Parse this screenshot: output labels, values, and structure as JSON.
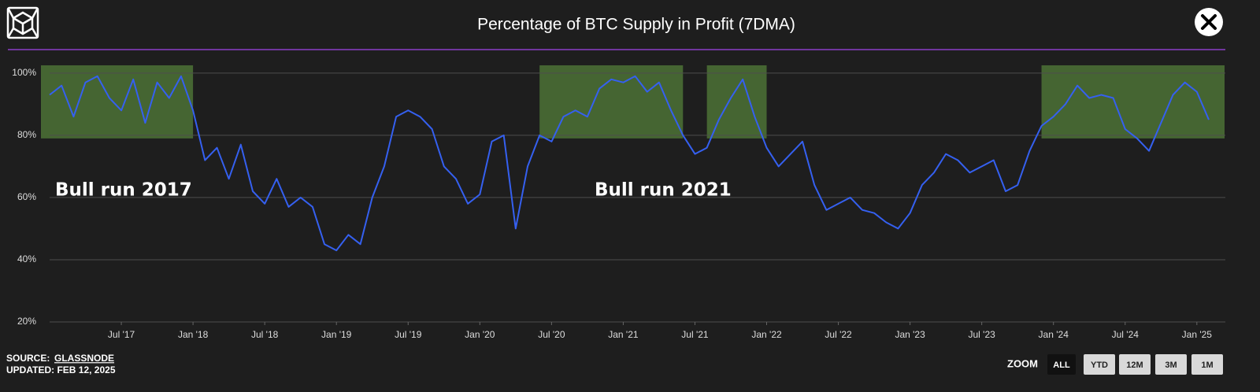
{
  "header": {
    "title": "Percentage of BTC Supply in Profit (7DMA)"
  },
  "chart_data": {
    "type": "line",
    "color": "#3560f0",
    "x": [
      "2017-01",
      "2017-02",
      "2017-03",
      "2017-04",
      "2017-05",
      "2017-06",
      "2017-07",
      "2017-08",
      "2017-09",
      "2017-10",
      "2017-11",
      "2017-12",
      "2018-01",
      "2018-02",
      "2018-03",
      "2018-04",
      "2018-05",
      "2018-06",
      "2018-07",
      "2018-08",
      "2018-09",
      "2018-10",
      "2018-11",
      "2018-12",
      "2019-01",
      "2019-02",
      "2019-03",
      "2019-04",
      "2019-05",
      "2019-06",
      "2019-07",
      "2019-08",
      "2019-09",
      "2019-10",
      "2019-11",
      "2019-12",
      "2020-01",
      "2020-02",
      "2020-03",
      "2020-04",
      "2020-05",
      "2020-06",
      "2020-07",
      "2020-08",
      "2020-09",
      "2020-10",
      "2020-11",
      "2020-12",
      "2021-01",
      "2021-02",
      "2021-03",
      "2021-04",
      "2021-05",
      "2021-06",
      "2021-07",
      "2021-08",
      "2021-09",
      "2021-10",
      "2021-11",
      "2021-12",
      "2022-01",
      "2022-02",
      "2022-03",
      "2022-04",
      "2022-05",
      "2022-06",
      "2022-07",
      "2022-08",
      "2022-09",
      "2022-10",
      "2022-11",
      "2022-12",
      "2023-01",
      "2023-02",
      "2023-03",
      "2023-04",
      "2023-05",
      "2023-06",
      "2023-07",
      "2023-08",
      "2023-09",
      "2023-10",
      "2023-11",
      "2023-12",
      "2024-01",
      "2024-02",
      "2024-03",
      "2024-04",
      "2024-05",
      "2024-06",
      "2024-07",
      "2024-08",
      "2024-09",
      "2024-10",
      "2024-11",
      "2024-12",
      "2025-01",
      "2025-02"
    ],
    "values": [
      93,
      96,
      86,
      97,
      99,
      92,
      88,
      98,
      84,
      97,
      92,
      99,
      88,
      72,
      76,
      66,
      77,
      62,
      58,
      66,
      57,
      60,
      57,
      45,
      43,
      48,
      45,
      60,
      70,
      86,
      88,
      86,
      82,
      70,
      66,
      58,
      61,
      78,
      80,
      50,
      70,
      80,
      78,
      86,
      88,
      86,
      95,
      98,
      97,
      99,
      94,
      97,
      88,
      80,
      74,
      76,
      85,
      92,
      98,
      86,
      76,
      70,
      74,
      78,
      64,
      56,
      58,
      60,
      56,
      55,
      52,
      50,
      55,
      64,
      68,
      74,
      72,
      68,
      70,
      72,
      62,
      64,
      75,
      83,
      86,
      90,
      96,
      92,
      93,
      92,
      82,
      79,
      75,
      84,
      93,
      97,
      94,
      85
    ],
    "xlim": [
      "2017-01",
      "2025-02"
    ],
    "xticks": [
      {
        "value": "2017-07",
        "label": "Jul '17"
      },
      {
        "value": "2018-01",
        "label": "Jan '18"
      },
      {
        "value": "2018-07",
        "label": "Jul '18"
      },
      {
        "value": "2019-01",
        "label": "Jan '19"
      },
      {
        "value": "2019-07",
        "label": "Jul '19"
      },
      {
        "value": "2020-01",
        "label": "Jan '20"
      },
      {
        "value": "2020-07",
        "label": "Jul '20"
      },
      {
        "value": "2021-01",
        "label": "Jan '21"
      },
      {
        "value": "2021-07",
        "label": "Jul '21"
      },
      {
        "value": "2022-01",
        "label": "Jan '22"
      },
      {
        "value": "2022-07",
        "label": "Jul '22"
      },
      {
        "value": "2023-01",
        "label": "Jan '23"
      },
      {
        "value": "2023-07",
        "label": "Jul '23"
      },
      {
        "value": "2024-01",
        "label": "Jan '24"
      },
      {
        "value": "2024-07",
        "label": "Jul '24"
      },
      {
        "value": "2025-01",
        "label": "Jan '25"
      }
    ],
    "ylim": [
      20,
      103
    ],
    "yticks": [
      {
        "value": 20,
        "label": "20%"
      },
      {
        "value": 40,
        "label": "40%"
      },
      {
        "value": 60,
        "label": "60%"
      },
      {
        "value": 80,
        "label": "80%"
      },
      {
        "value": 100,
        "label": "100%"
      }
    ],
    "grid": true,
    "highlight_color": "#56833a",
    "highlights": [
      {
        "x": [
          "2017-01",
          "2018-01"
        ],
        "y": [
          79,
          102.5
        ]
      },
      {
        "x": [
          "2020-06",
          "2021-06"
        ],
        "y": [
          79,
          102.5
        ]
      },
      {
        "x": [
          "2021-08",
          "2022-01"
        ],
        "y": [
          79,
          102.5
        ]
      },
      {
        "x": [
          "2023-12",
          "2025-02"
        ],
        "y": [
          79,
          102.5
        ]
      }
    ],
    "annotations": [
      {
        "text": "Bull run 2017"
      },
      {
        "text": "Bull run 2021"
      }
    ]
  },
  "footer": {
    "source_label": "SOURCE:",
    "source": "GLASSNODE",
    "updated": "UPDATED: FEB 12, 2025",
    "zoom_label": "ZOOM",
    "zoom_buttons": [
      "ALL",
      "YTD",
      "12M",
      "3M",
      "1M"
    ]
  }
}
